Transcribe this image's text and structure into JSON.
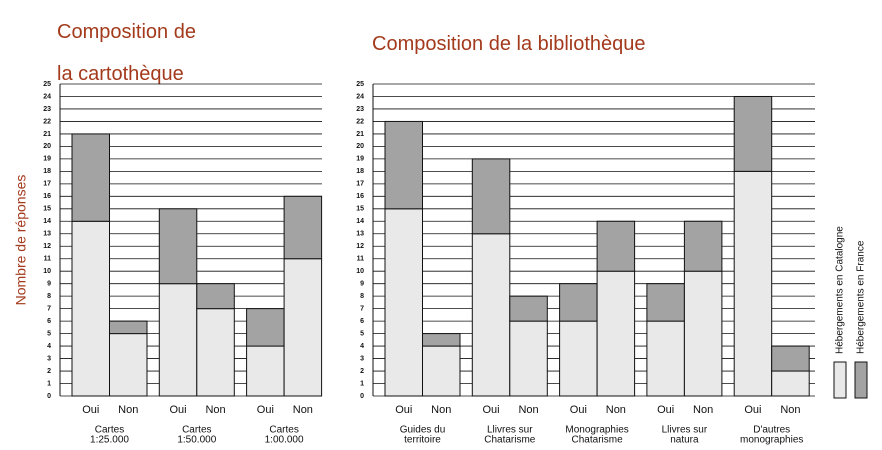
{
  "chart_data": [
    {
      "type": "bar",
      "stacked": true,
      "title": [
        "Composition de",
        "la cartothèque"
      ],
      "ylabel": "Nombre de réponses",
      "groups": [
        [
          "Cartes",
          "1:25.000"
        ],
        [
          "Cartes",
          "1:50.000"
        ],
        [
          "Cartes",
          "1:00.000"
        ]
      ],
      "categories": [
        "Oui",
        "Non",
        "Oui",
        "Non",
        "Oui",
        "Non"
      ],
      "series": [
        {
          "color": "#e9e9e9",
          "values": [
            14,
            5,
            9,
            7,
            4,
            11
          ]
        },
        {
          "color": "#a3a3a3",
          "values": [
            7,
            1,
            6,
            2,
            3,
            5
          ]
        }
      ],
      "ylim": [
        0,
        25
      ],
      "yticks": [
        0,
        1,
        2,
        3,
        4,
        5,
        6,
        7,
        8,
        9,
        10,
        11,
        12,
        13,
        14,
        15,
        16,
        17,
        18,
        19,
        20,
        21,
        22,
        23,
        24,
        25
      ],
      "grid": true
    },
    {
      "type": "bar",
      "stacked": true,
      "title": [
        "Composition de la bibliothèque"
      ],
      "groups": [
        [
          "Guides du",
          "territoire"
        ],
        [
          "Llivres sur",
          "Chatarisme"
        ],
        [
          "Monographies",
          "Chatarisme"
        ],
        [
          "Llivres sur",
          "natura"
        ],
        [
          "D'autres",
          "monographies"
        ]
      ],
      "categories": [
        "Oui",
        "Non",
        "Oui",
        "Non",
        "Oui",
        "Non",
        "Oui",
        "Non",
        "Oui",
        "Non"
      ],
      "series": [
        {
          "name": "Hébergements en Catalogne",
          "color": "#e9e9e9",
          "values": [
            15,
            4,
            13,
            6,
            6,
            10,
            6,
            10,
            18,
            2
          ]
        },
        {
          "name": "Hébergements en France",
          "color": "#a3a3a3",
          "values": [
            7,
            1,
            6,
            2,
            3,
            4,
            3,
            4,
            6,
            2
          ]
        }
      ],
      "ylim": [
        0,
        25
      ],
      "yticks": [
        0,
        1,
        2,
        3,
        4,
        5,
        6,
        7,
        8,
        9,
        10,
        11,
        12,
        13,
        14,
        15,
        16,
        17,
        18,
        19,
        20,
        21,
        22,
        23,
        24,
        25
      ],
      "grid": true,
      "legend": "right"
    }
  ]
}
